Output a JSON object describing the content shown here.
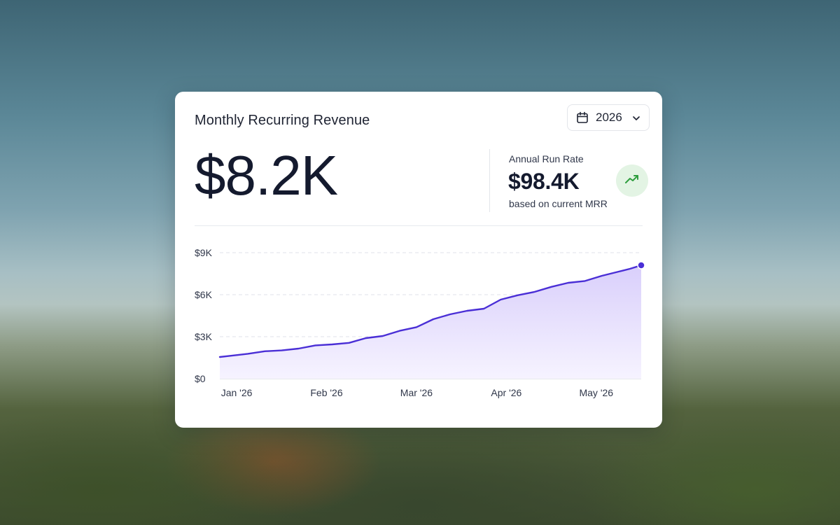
{
  "card": {
    "title": "Monthly Recurring Revenue",
    "year_selector": {
      "value": "2026",
      "icon": "calendar-icon",
      "chevron": "chevron-down-icon"
    },
    "headline_value": "$8.2K",
    "annual_run_rate": {
      "label": "Annual Run Rate",
      "value": "$98.4K",
      "sublabel": "based on current MRR",
      "trend_icon": "trending-up-icon",
      "trend_color": "#2e9e3e"
    }
  },
  "colors": {
    "line": "#4a2fd6",
    "fill_top": "#d9cffb",
    "fill_bottom": "#f6f3ff",
    "grid": "#dfe2e8",
    "text_dark": "#141a2e",
    "trend_bg": "#e3f4e4"
  },
  "chart_data": {
    "type": "area",
    "title": "",
    "xlabel": "",
    "ylabel": "",
    "ylim": [
      0,
      9000
    ],
    "y_ticks": [
      {
        "value": 0,
        "label": "$0"
      },
      {
        "value": 3000,
        "label": "$3K"
      },
      {
        "value": 6000,
        "label": "$6K"
      },
      {
        "value": 9000,
        "label": "$9K"
      }
    ],
    "x_ticks": [
      {
        "x": 3,
        "label": "Jan '26"
      },
      {
        "x": 19,
        "label": "Feb '26"
      },
      {
        "x": 35,
        "label": "Mar '26"
      },
      {
        "x": 51,
        "label": "Apr '26"
      },
      {
        "x": 67,
        "label": "May '26"
      }
    ],
    "xlim": [
      0,
      75
    ],
    "grid": true,
    "series": [
      {
        "x": [
          0,
          2,
          5,
          8,
          11,
          14,
          17,
          20,
          23,
          26,
          29,
          32,
          35,
          38,
          41,
          44,
          47,
          50,
          53,
          56,
          59,
          62,
          65,
          68,
          71,
          73,
          75
        ],
        "values": [
          1550,
          1640,
          1780,
          1960,
          2020,
          2150,
          2380,
          2450,
          2560,
          2900,
          3050,
          3420,
          3680,
          4250,
          4600,
          4850,
          5000,
          5650,
          5960,
          6200,
          6560,
          6850,
          6980,
          7350,
          7650,
          7850,
          8100
        ],
        "end_marker": true
      }
    ]
  }
}
